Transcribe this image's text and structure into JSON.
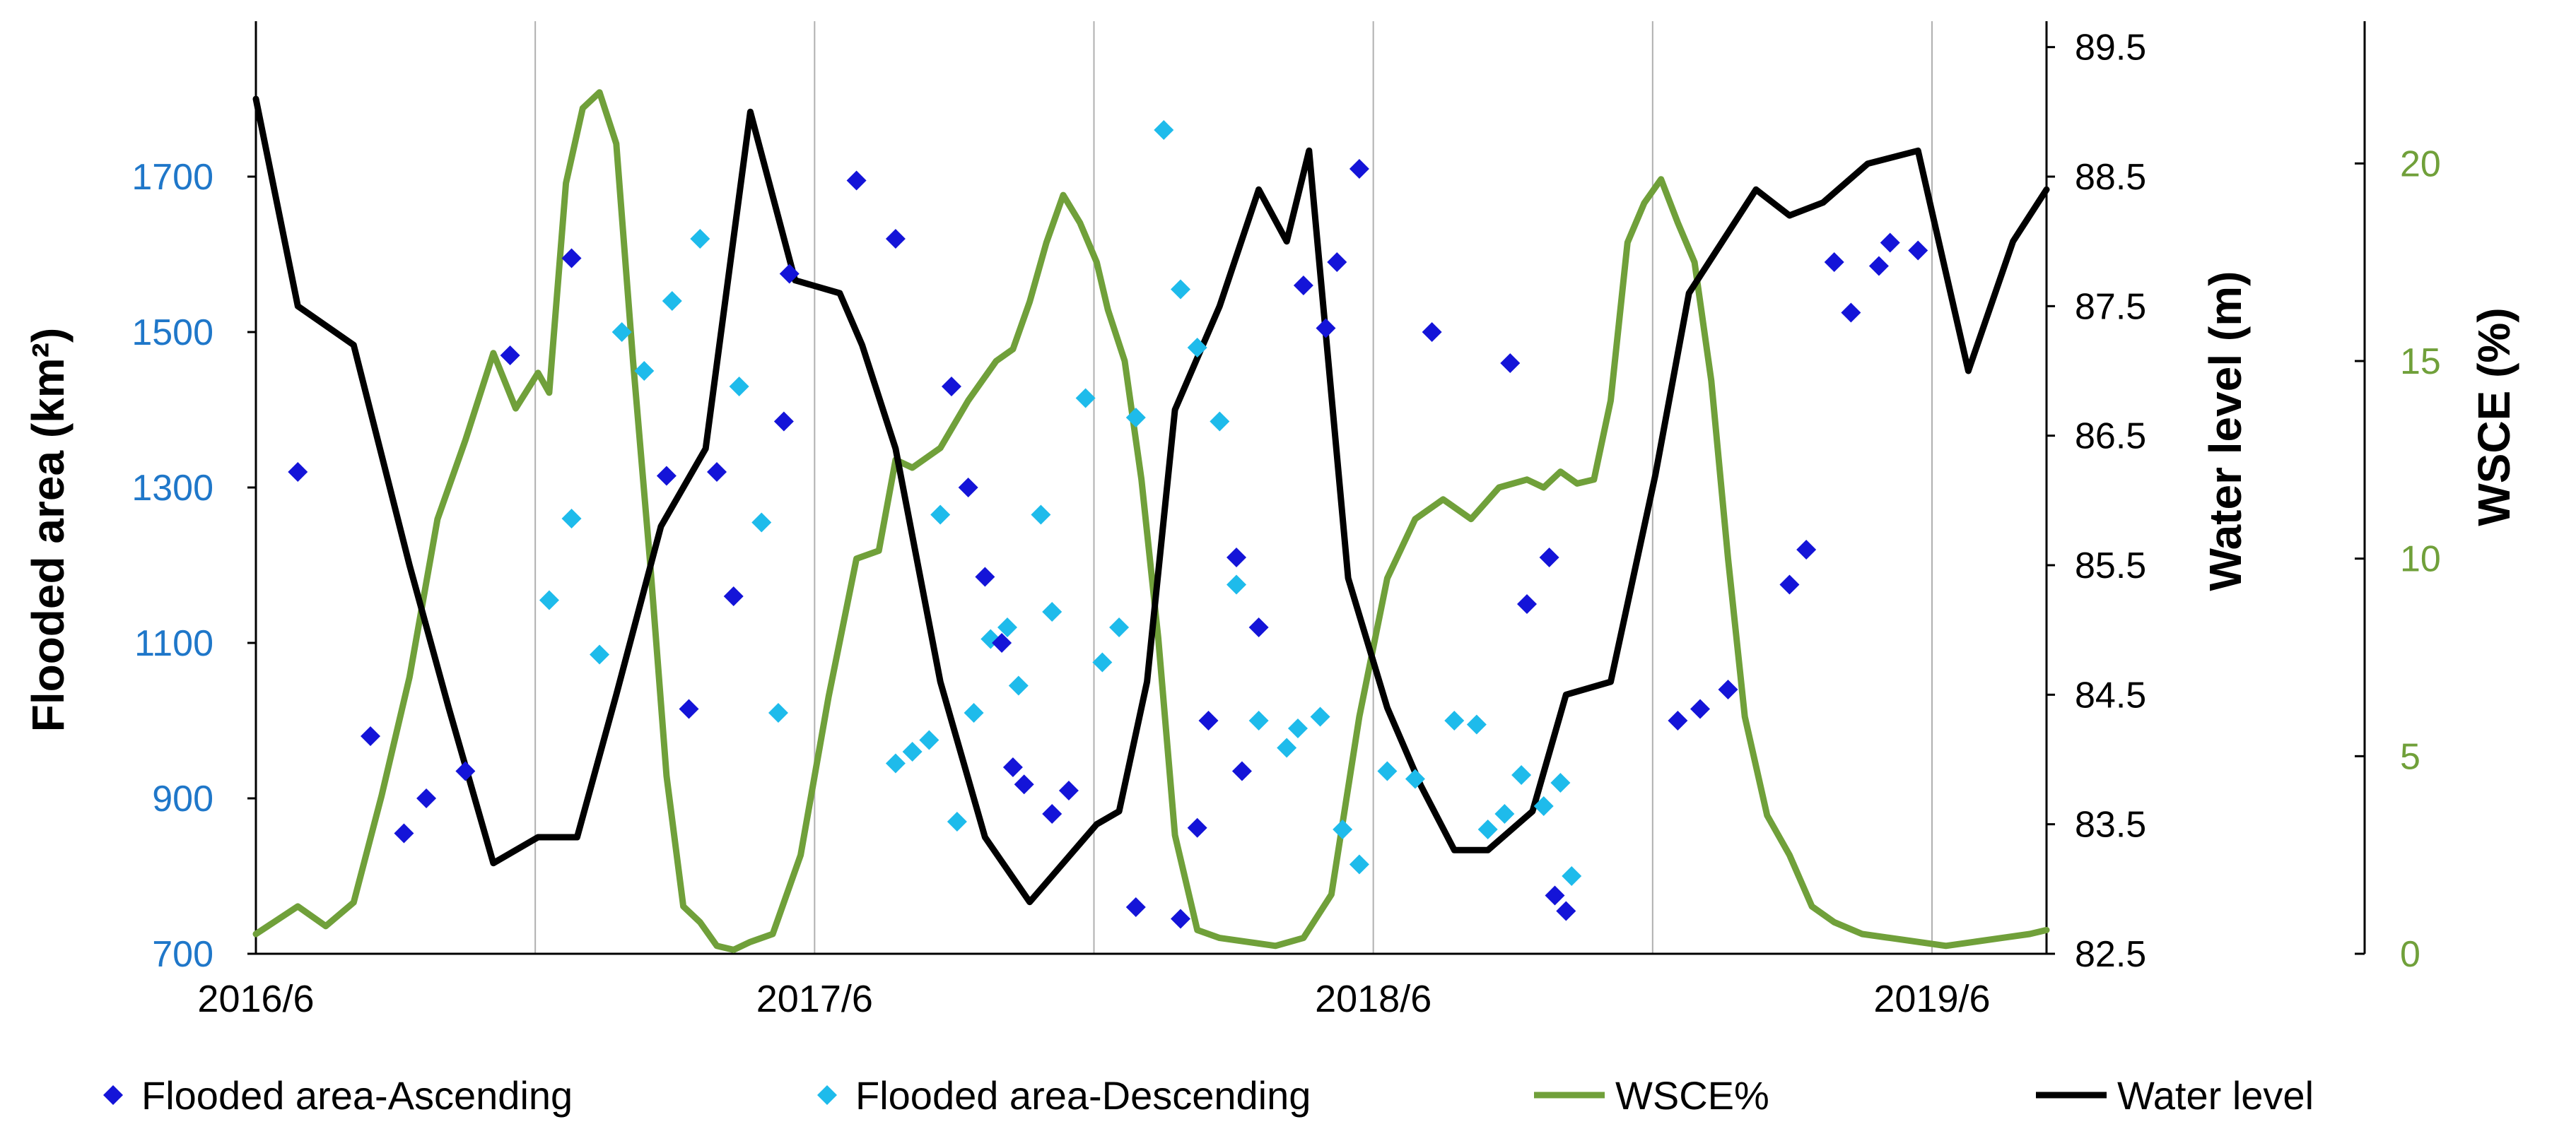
{
  "chart_data": {
    "type": "line",
    "title": "",
    "xlabel": "",
    "x_ticks": [
      "2016/6",
      "2017/6",
      "2018/6",
      "2019/6"
    ],
    "x_range": [
      2016.375,
      2019.58
    ],
    "axes": {
      "left": {
        "label": "Flooded area (km²)",
        "ylim": [
          700,
          1900
        ],
        "ticks": [
          700,
          900,
          1100,
          1300,
          1500,
          1700
        ],
        "color": "#1F77C9"
      },
      "middle": {
        "label": "Water level (m)",
        "ylim": [
          82.5,
          89.7
        ],
        "ticks": [
          "82.5",
          "83.5",
          "84.5",
          "85.5",
          "86.5",
          "87.5",
          "88.5",
          "89.5"
        ],
        "color": "#000000"
      },
      "right": {
        "label": "WSCE (%)",
        "ylim": [
          0,
          23.6
        ],
        "ticks": [
          0,
          5,
          10,
          15,
          20
        ],
        "color": "#70A03A"
      }
    },
    "series": [
      {
        "name": "Flooded area-Ascending",
        "type": "scatter",
        "axis": "left",
        "color": "#1414D8",
        "marker": "diamond",
        "x": [
          2016.45,
          2016.58,
          2016.64,
          2016.68,
          2016.75,
          2016.83,
          2016.94,
          2017.11,
          2017.15,
          2017.2,
          2017.23,
          2017.32,
          2017.33,
          2017.45,
          2017.52,
          2017.62,
          2017.65,
          2017.68,
          2017.71,
          2017.73,
          2017.75,
          2017.8,
          2017.83,
          2017.95,
          2018.03,
          2018.06,
          2018.08,
          2018.13,
          2018.14,
          2018.17,
          2018.25,
          2018.29,
          2018.31,
          2018.35,
          2018.48,
          2018.62,
          2018.65,
          2018.69,
          2018.7,
          2018.72,
          2018.92,
          2018.96,
          2019.01,
          2019.12,
          2019.15,
          2019.2,
          2019.23,
          2019.28,
          2019.3,
          2019.35
        ],
        "values": [
          1320,
          980,
          855,
          900,
          935,
          1470,
          1595,
          1315,
          1015,
          1320,
          1160,
          1385,
          1575,
          1695,
          1620,
          1430,
          1300,
          1185,
          1100,
          940,
          918,
          880,
          910,
          760,
          745,
          862,
          1000,
          1210,
          935,
          1120,
          1560,
          1505,
          1590,
          1710,
          1500,
          1460,
          1150,
          1210,
          775,
          755,
          1000,
          1015,
          1040,
          1175,
          1220,
          1590,
          1525,
          1585,
          1615,
          1605
        ]
      },
      {
        "name": "Flooded area-Descending",
        "type": "scatter",
        "axis": "left",
        "color": "#1EBBEB",
        "marker": "diamond",
        "x": [
          2016.9,
          2016.94,
          2016.99,
          2017.03,
          2017.07,
          2017.12,
          2017.17,
          2017.24,
          2017.28,
          2017.31,
          2017.52,
          2017.55,
          2017.58,
          2017.6,
          2017.63,
          2017.66,
          2017.69,
          2017.72,
          2017.74,
          2017.78,
          2017.8,
          2017.86,
          2017.89,
          2017.92,
          2017.95,
          2018.0,
          2018.03,
          2018.06,
          2018.1,
          2018.13,
          2018.17,
          2018.22,
          2018.24,
          2018.28,
          2018.32,
          2018.35,
          2018.4,
          2018.45,
          2018.52,
          2018.56,
          2018.58,
          2018.61,
          2018.64,
          2018.68,
          2018.71,
          2018.73
        ],
        "values": [
          1155,
          1260,
          1085,
          1500,
          1450,
          1540,
          1620,
          1430,
          1255,
          1010,
          945,
          960,
          975,
          1265,
          870,
          1010,
          1105,
          1120,
          1045,
          1265,
          1140,
          1415,
          1075,
          1120,
          1390,
          1760,
          1555,
          1480,
          1385,
          1175,
          1000,
          965,
          990,
          1005,
          860,
          815,
          935,
          925,
          1000,
          995,
          860,
          880,
          930,
          890,
          920,
          800
        ]
      },
      {
        "name": "WSCE%",
        "type": "line",
        "axis": "right",
        "color": "#70A03A",
        "x": [
          2016.375,
          2016.45,
          2016.5,
          2016.55,
          2016.6,
          2016.65,
          2016.7,
          2016.75,
          2016.8,
          2016.84,
          2016.88,
          2016.9,
          2016.93,
          2016.96,
          2016.99,
          2017.02,
          2017.05,
          2017.08,
          2017.11,
          2017.14,
          2017.17,
          2017.2,
          2017.23,
          2017.26,
          2017.3,
          2017.35,
          2017.4,
          2017.45,
          2017.49,
          2017.52,
          2017.55,
          2017.6,
          2017.65,
          2017.7,
          2017.73,
          2017.76,
          2017.79,
          2017.82,
          2017.85,
          2017.88,
          2017.9,
          2017.93,
          2017.96,
          2017.99,
          2018.02,
          2018.06,
          2018.1,
          2018.15,
          2018.2,
          2018.25,
          2018.3,
          2018.35,
          2018.4,
          2018.45,
          2018.5,
          2018.55,
          2018.6,
          2018.65,
          2018.68,
          2018.71,
          2018.74,
          2018.77,
          2018.8,
          2018.83,
          2018.86,
          2018.89,
          2018.92,
          2018.95,
          2018.98,
          2019.01,
          2019.04,
          2019.08,
          2019.12,
          2019.16,
          2019.2,
          2019.25,
          2019.3,
          2019.35,
          2019.4,
          2019.45,
          2019.5,
          2019.55,
          2019.58
        ],
        "values": [
          0.5,
          1.2,
          0.7,
          1.3,
          4.0,
          7.0,
          11.0,
          13.0,
          15.2,
          13.8,
          14.7,
          14.2,
          19.5,
          21.4,
          21.8,
          20.5,
          15.0,
          10.0,
          4.5,
          1.2,
          0.8,
          0.2,
          0.1,
          0.3,
          0.5,
          2.5,
          6.5,
          10.0,
          10.2,
          12.5,
          12.3,
          12.8,
          14.0,
          15.0,
          15.3,
          16.5,
          18.0,
          19.2,
          18.5,
          17.5,
          16.3,
          15.0,
          12.0,
          8.0,
          3.0,
          0.6,
          0.4,
          0.3,
          0.2,
          0.4,
          1.5,
          6.0,
          9.5,
          11.0,
          11.5,
          11.0,
          11.8,
          12.0,
          11.8,
          12.2,
          11.9,
          12.0,
          14.0,
          18.0,
          19.0,
          19.6,
          18.5,
          17.5,
          14.5,
          10.0,
          6.0,
          3.5,
          2.5,
          1.2,
          0.8,
          0.5,
          0.4,
          0.3,
          0.2,
          0.3,
          0.4,
          0.5,
          0.6
        ]
      },
      {
        "name": "Water level",
        "type": "line",
        "axis": "middle",
        "color": "#000000",
        "x": [
          2016.375,
          2016.45,
          2016.55,
          2016.65,
          2016.72,
          2016.8,
          2016.88,
          2016.95,
          2017.02,
          2017.1,
          2017.18,
          2017.26,
          2017.34,
          2017.42,
          2017.46,
          2017.52,
          2017.6,
          2017.68,
          2017.76,
          2017.8,
          2017.84,
          2017.88,
          2017.92,
          2017.97,
          2018.02,
          2018.1,
          2018.17,
          2018.22,
          2018.26,
          2018.33,
          2018.4,
          2018.46,
          2018.52,
          2018.58,
          2018.66,
          2018.72,
          2018.8,
          2018.88,
          2018.94,
          2019.0,
          2019.06,
          2019.12,
          2019.18,
          2019.26,
          2019.35,
          2019.44,
          2019.52,
          2019.58
        ],
        "values": [
          89.1,
          87.5,
          87.2,
          85.5,
          84.4,
          83.2,
          83.4,
          83.4,
          84.5,
          85.8,
          86.4,
          89.0,
          87.7,
          87.6,
          87.2,
          86.4,
          84.6,
          83.4,
          82.9,
          83.1,
          83.3,
          83.5,
          83.6,
          84.6,
          86.7,
          87.5,
          88.4,
          88.0,
          88.7,
          85.4,
          84.4,
          83.8,
          83.3,
          83.3,
          83.6,
          84.5,
          84.6,
          86.2,
          87.6,
          88.0,
          88.4,
          88.2,
          88.3,
          88.6,
          88.7,
          87.0,
          88.0,
          88.4
        ]
      }
    ],
    "legend": {
      "position": "bottom",
      "entries": [
        {
          "label": "Flooded area-Ascending",
          "marker": "diamond",
          "color": "#1414D8"
        },
        {
          "label": "Flooded area-Descending",
          "marker": "diamond",
          "color": "#1EBBEB"
        },
        {
          "label": "WSCE%",
          "marker": "line",
          "color": "#70A03A"
        },
        {
          "label": "Water level",
          "marker": "line",
          "color": "#000000"
        }
      ]
    }
  }
}
